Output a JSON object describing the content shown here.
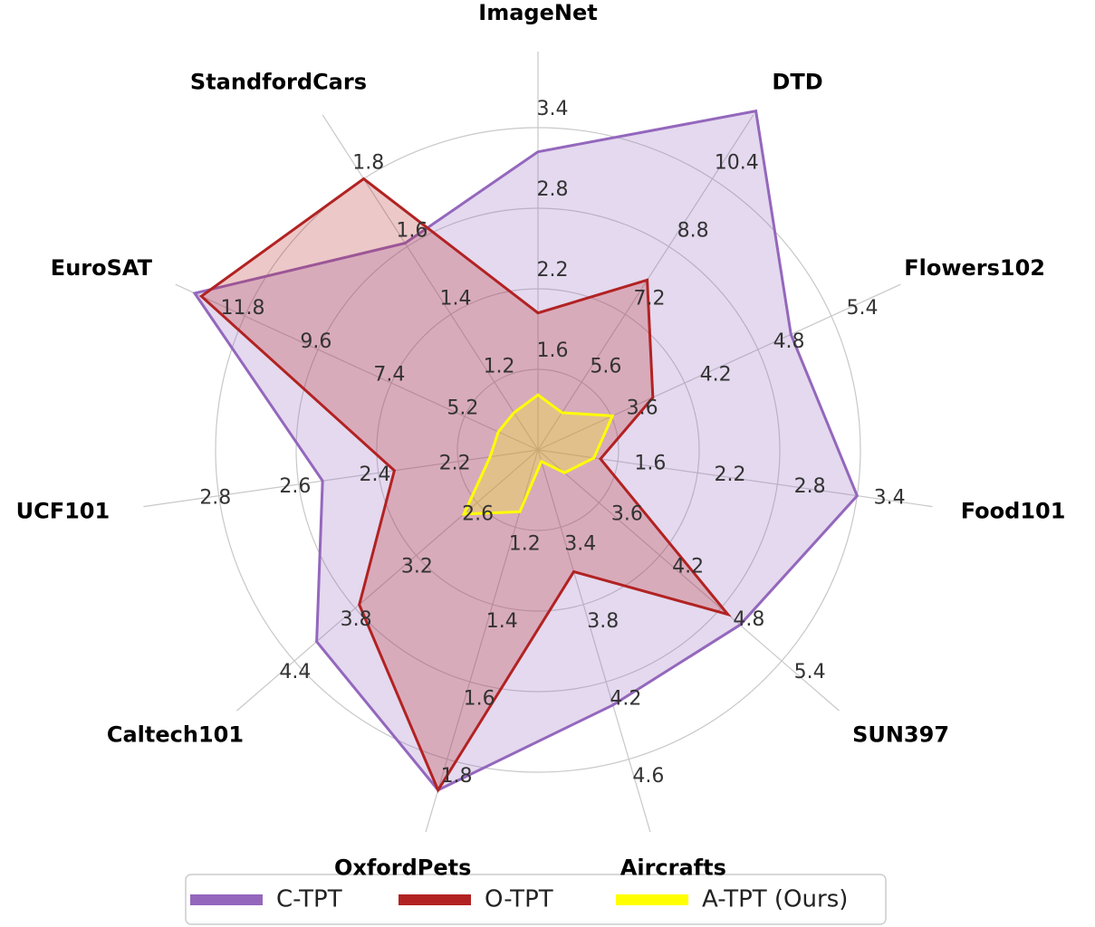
{
  "chart_data": {
    "type": "radar",
    "categories": [
      "ImageNet",
      "DTD",
      "Flowers102",
      "Food101",
      "SUN397",
      "Aircrafts",
      "OxfordPets",
      "Caltech101",
      "UCF101",
      "EuroSAT",
      "StandfordCars"
    ],
    "axis_lims": [
      [
        1.0,
        3.4
      ],
      [
        4.0,
        10.4
      ],
      [
        3.0,
        5.4
      ],
      [
        1.0,
        3.4
      ],
      [
        3.0,
        5.4
      ],
      [
        3.0,
        4.6
      ],
      [
        1.0,
        1.8
      ],
      [
        2.0,
        4.4
      ],
      [
        2.0,
        2.8
      ],
      [
        3.0,
        11.8
      ],
      [
        1.0,
        1.8
      ]
    ],
    "axis_ticks": [
      [
        1.6,
        2.2,
        2.8,
        3.4
      ],
      [
        5.6,
        7.2,
        8.8,
        10.4
      ],
      [
        3.6,
        4.2,
        4.8,
        5.4
      ],
      [
        1.6,
        2.2,
        2.8,
        3.4
      ],
      [
        3.6,
        4.2,
        4.8,
        5.4
      ],
      [
        3.4,
        3.8,
        4.2,
        4.6
      ],
      [
        1.2,
        1.4,
        1.6,
        1.8
      ],
      [
        2.6,
        3.2,
        3.8,
        4.4
      ],
      [
        2.2,
        2.4,
        2.6,
        2.8
      ],
      [
        5.2,
        7.4,
        9.6,
        11.8
      ],
      [
        1.2,
        1.4,
        1.6,
        1.8
      ]
    ],
    "grid": true,
    "legend": "bottom",
    "series": [
      {
        "name": "C-TPT",
        "color": "#9467bd",
        "values": [
          3.22,
          12.0,
          5.07,
          3.4,
          4.99,
          4.32,
          1.88,
          4.18,
          2.54,
          13.3,
          1.61
        ]
      },
      {
        "name": "O-TPT",
        "color": "#b22222",
        "values": [
          2.02,
          8.01,
          3.94,
          1.47,
          4.87,
          3.63,
          1.88,
          3.76,
          2.36,
          13.1,
          1.8
        ]
      },
      {
        "name": "A-TPT (Ours)",
        "color": "#ffff00",
        "values": [
          1.41,
          4.88,
          3.61,
          1.42,
          3.26,
          3.06,
          1.16,
          2.73,
          2.12,
          4.19,
          1.11
        ]
      }
    ]
  }
}
